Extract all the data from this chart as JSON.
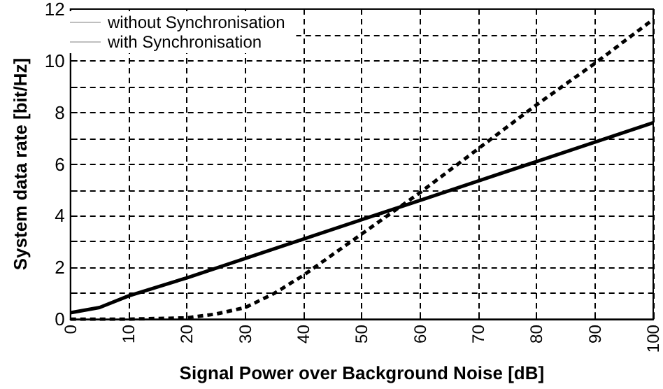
{
  "chart_data": {
    "type": "line",
    "xlabel": "Signal Power over Background Noise [dB]",
    "ylabel": "System data rate [bit/Hz]",
    "xlim": [
      0,
      100
    ],
    "xticks": [
      0,
      10,
      20,
      30,
      40,
      50,
      60,
      70,
      80,
      90,
      100
    ],
    "ylim": [
      0,
      12
    ],
    "yticks": [
      0,
      {
        "value": 1,
        "label": null
      },
      2,
      {
        "value": 3,
        "label": null
      },
      4,
      {
        "value": 5,
        "label": null
      },
      6,
      {
        "value": 7,
        "label": null
      },
      8,
      {
        "value": 9,
        "label": null
      },
      10,
      {
        "value": 11,
        "label": null
      },
      12
    ],
    "grid": true,
    "legend": "top left",
    "marker": "none",
    "series": [
      {
        "name": "without Synchronisation",
        "color": "#000000",
        "line_style": "dashed",
        "x": [
          0,
          10,
          20,
          25,
          30,
          35,
          40,
          45,
          50,
          55,
          60,
          70,
          80,
          90,
          100
        ],
        "values": [
          0,
          0,
          0.05,
          0.2,
          0.45,
          1.0,
          1.7,
          2.5,
          3.3,
          4.1,
          4.9,
          6.6,
          8.3,
          9.9,
          11.6
        ]
      },
      {
        "name": "with Synchronisation",
        "color": "#000000",
        "line_style": "solid",
        "x": [
          0,
          5,
          10,
          20,
          30,
          40,
          50,
          60,
          70,
          80,
          90,
          100
        ],
        "values": [
          0.25,
          0.45,
          0.9,
          1.6,
          2.35,
          3.1,
          3.85,
          4.6,
          5.35,
          6.1,
          6.85,
          7.6
        ]
      }
    ]
  }
}
